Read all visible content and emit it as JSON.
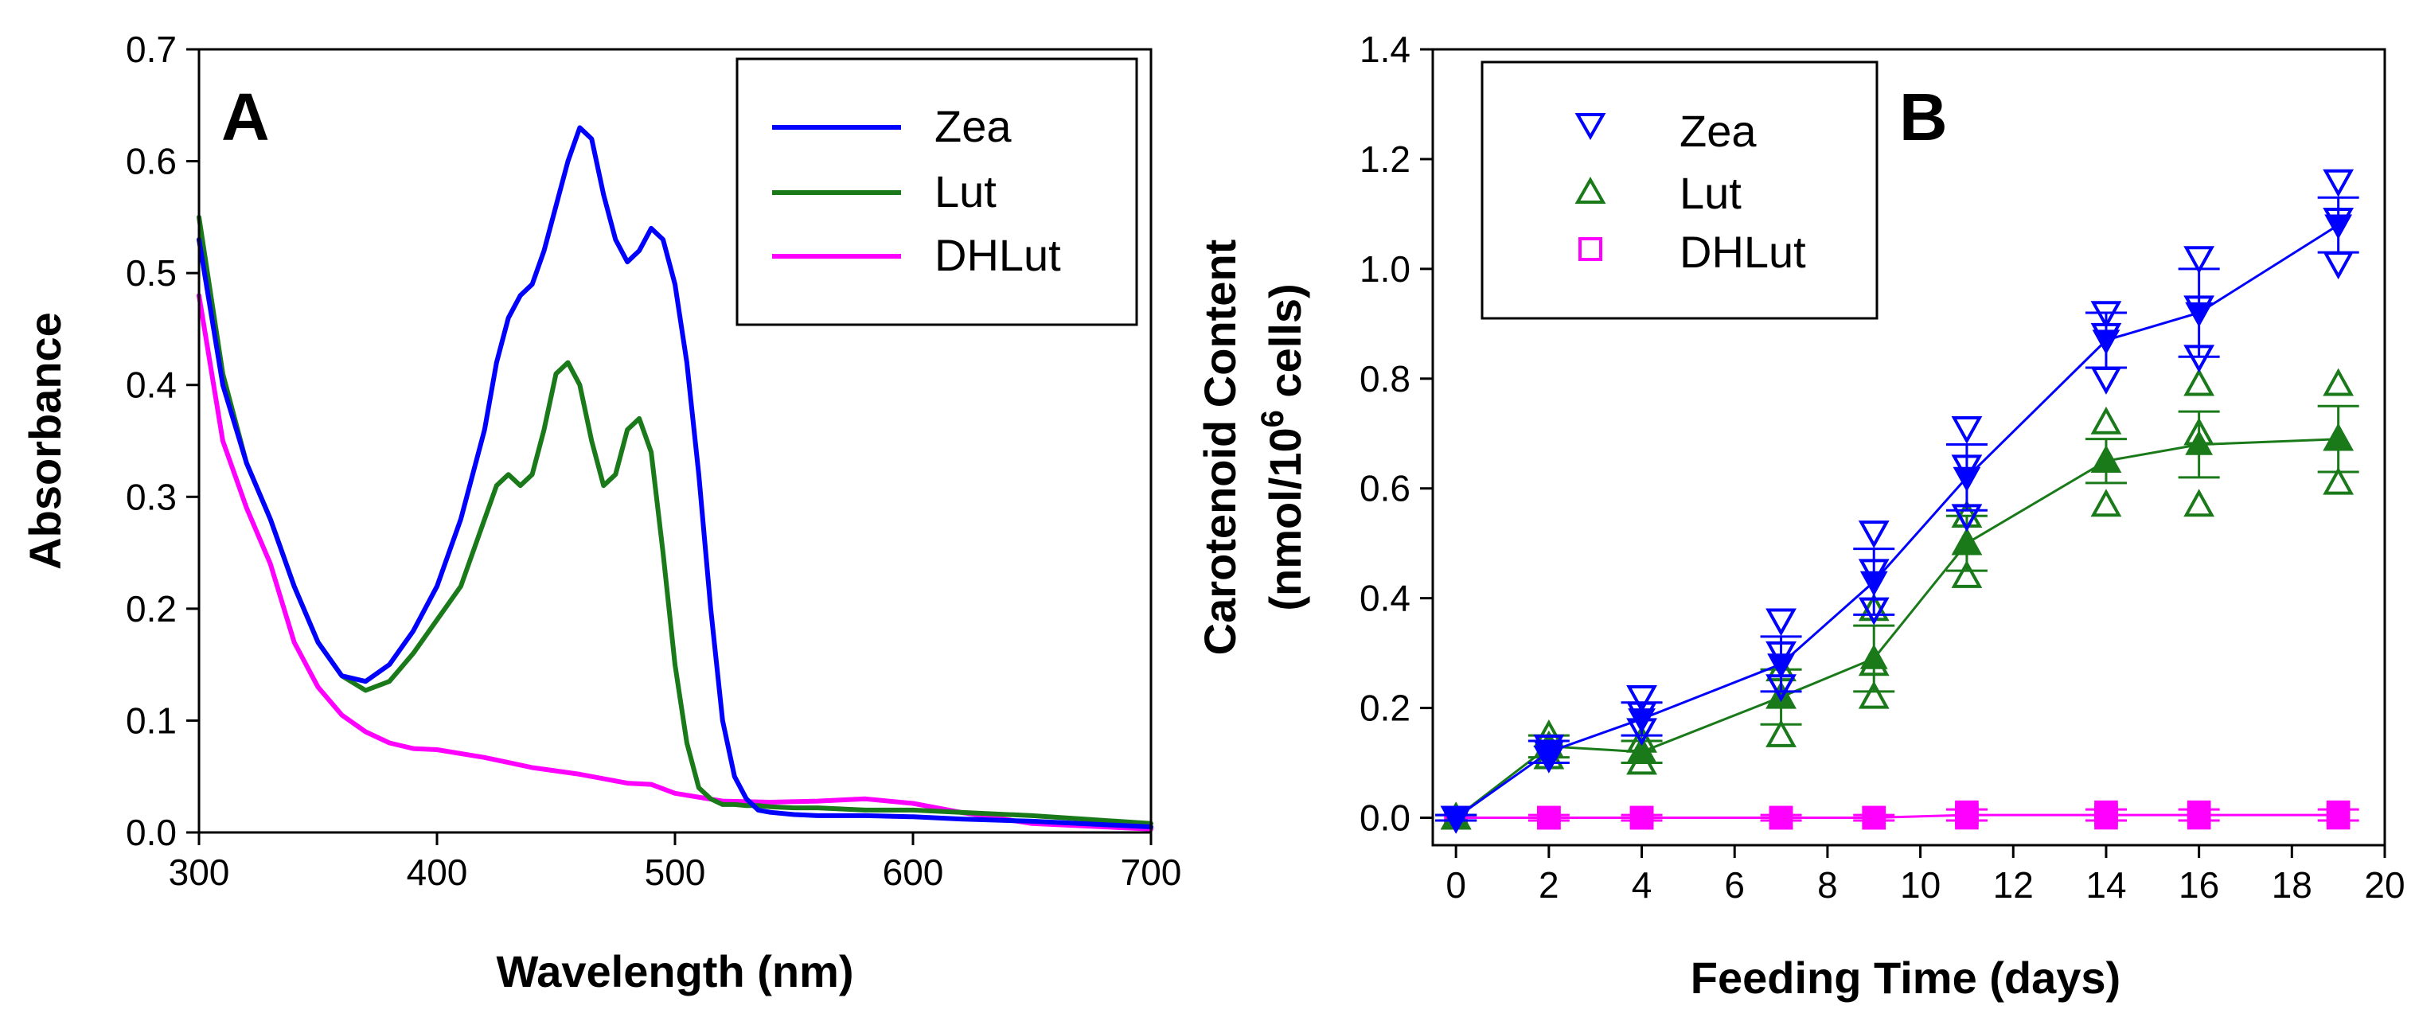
{
  "chart_data": [
    {
      "type": "line",
      "panel_label": "A",
      "xlabel": "Wavelength (nm)",
      "ylabel": "Absorbance",
      "xlim": [
        300,
        700
      ],
      "ylim": [
        0,
        0.7
      ],
      "xticks": [
        300,
        400,
        500,
        600,
        700
      ],
      "yticks": [
        0.0,
        0.1,
        0.2,
        0.3,
        0.4,
        0.5,
        0.6,
        0.7
      ],
      "xtick_labels": [
        "300",
        "400",
        "500",
        "600",
        "700"
      ],
      "ytick_labels": [
        "0.0",
        "0.1",
        "0.2",
        "0.3",
        "0.4",
        "0.5",
        "0.6",
        "0.7"
      ],
      "legend_position": "top-right",
      "series": [
        {
          "name": "Zea",
          "color": "#0000ff",
          "x": [
            300,
            310,
            320,
            330,
            340,
            350,
            360,
            370,
            380,
            390,
            400,
            410,
            420,
            425,
            430,
            435,
            440,
            445,
            450,
            455,
            460,
            465,
            470,
            475,
            480,
            485,
            490,
            495,
            500,
            505,
            510,
            515,
            520,
            525,
            530,
            535,
            540,
            550,
            560,
            580,
            600,
            620,
            650,
            700
          ],
          "y": [
            0.53,
            0.4,
            0.33,
            0.28,
            0.22,
            0.17,
            0.14,
            0.135,
            0.15,
            0.18,
            0.22,
            0.28,
            0.36,
            0.42,
            0.46,
            0.48,
            0.49,
            0.52,
            0.56,
            0.6,
            0.63,
            0.62,
            0.57,
            0.53,
            0.51,
            0.52,
            0.54,
            0.53,
            0.49,
            0.42,
            0.32,
            0.2,
            0.1,
            0.05,
            0.03,
            0.02,
            0.018,
            0.016,
            0.015,
            0.015,
            0.014,
            0.012,
            0.01,
            0.005
          ]
        },
        {
          "name": "Lut",
          "color": "#1a7a1a",
          "x": [
            300,
            310,
            320,
            330,
            340,
            350,
            360,
            370,
            380,
            390,
            400,
            410,
            420,
            425,
            430,
            435,
            440,
            445,
            450,
            455,
            460,
            465,
            470,
            475,
            480,
            485,
            490,
            495,
            500,
            505,
            510,
            515,
            520,
            525,
            530,
            535,
            540,
            550,
            560,
            580,
            600,
            620,
            650,
            700
          ],
          "y": [
            0.55,
            0.41,
            0.33,
            0.28,
            0.22,
            0.17,
            0.14,
            0.127,
            0.135,
            0.16,
            0.19,
            0.22,
            0.28,
            0.31,
            0.32,
            0.31,
            0.32,
            0.36,
            0.41,
            0.42,
            0.4,
            0.35,
            0.31,
            0.32,
            0.36,
            0.37,
            0.34,
            0.25,
            0.15,
            0.08,
            0.04,
            0.03,
            0.025,
            0.025,
            0.024,
            0.024,
            0.023,
            0.022,
            0.022,
            0.02,
            0.02,
            0.018,
            0.015,
            0.008
          ]
        },
        {
          "name": "DHLut",
          "color": "#ff00ff",
          "x": [
            300,
            310,
            320,
            330,
            340,
            350,
            360,
            370,
            380,
            390,
            400,
            420,
            440,
            460,
            480,
            490,
            500,
            520,
            540,
            560,
            580,
            600,
            620,
            650,
            700
          ],
          "y": [
            0.48,
            0.35,
            0.29,
            0.24,
            0.17,
            0.13,
            0.105,
            0.09,
            0.08,
            0.075,
            0.074,
            0.067,
            0.058,
            0.052,
            0.044,
            0.043,
            0.035,
            0.028,
            0.027,
            0.028,
            0.03,
            0.026,
            0.018,
            0.008,
            0.003
          ]
        }
      ]
    },
    {
      "type": "scatter",
      "panel_label": "B",
      "xlabel": "Feeding Time (days)",
      "ylabel_line1": "Carotenoid Content",
      "ylabel_line2_prefix": "(nmol/10",
      "ylabel_line2_sup": "6",
      "ylabel_line2_suffix": " cells)",
      "xlim": [
        -0.5,
        20
      ],
      "ylim": [
        -0.05,
        1.4
      ],
      "xticks": [
        0,
        2,
        4,
        6,
        8,
        10,
        12,
        14,
        16,
        18,
        20
      ],
      "yticks": [
        0.0,
        0.2,
        0.4,
        0.6,
        0.8,
        1.0,
        1.2,
        1.4
      ],
      "xtick_labels": [
        "0",
        "2",
        "4",
        "6",
        "8",
        "10",
        "12",
        "14",
        "16",
        "18",
        "20"
      ],
      "ytick_labels": [
        "0.0",
        "0.2",
        "0.4",
        "0.6",
        "0.8",
        "1.0",
        "1.2",
        "1.4"
      ],
      "legend_position": "top-left",
      "days": [
        0,
        2,
        4,
        7,
        9,
        11,
        14,
        16,
        19
      ],
      "series": [
        {
          "name": "Zea",
          "color": "#0000ff",
          "marker": "triangle-down",
          "mean": [
            0.0,
            0.12,
            0.18,
            0.28,
            0.43,
            0.62,
            0.87,
            0.92,
            1.08
          ],
          "err": [
            0.005,
            0.02,
            0.03,
            0.05,
            0.06,
            0.06,
            0.05,
            0.08,
            0.05
          ],
          "replicates": [
            [
              0.0,
              0.0,
              0.0
            ],
            [
              0.11,
              0.12,
              0.13
            ],
            [
              0.16,
              0.19,
              0.22
            ],
            [
              0.24,
              0.3,
              0.36
            ],
            [
              0.38,
              0.45,
              0.52
            ],
            [
              0.55,
              0.64,
              0.71
            ],
            [
              0.8,
              0.88,
              0.92
            ],
            [
              0.84,
              0.93,
              1.02
            ],
            [
              1.01,
              1.09,
              1.16
            ]
          ]
        },
        {
          "name": "Lut",
          "color": "#1a7a1a",
          "marker": "triangle-up",
          "mean": [
            0.0,
            0.13,
            0.12,
            0.22,
            0.29,
            0.5,
            0.65,
            0.68,
            0.69
          ],
          "err": [
            0.005,
            0.02,
            0.02,
            0.05,
            0.06,
            0.05,
            0.04,
            0.06,
            0.06
          ],
          "replicates": [
            [
              0.0,
              0.0,
              0.0
            ],
            [
              0.11,
              0.13,
              0.15
            ],
            [
              0.1,
              0.12,
              0.14
            ],
            [
              0.15,
              0.22,
              0.27
            ],
            [
              0.22,
              0.28,
              0.38
            ],
            [
              0.44,
              0.5,
              0.55
            ],
            [
              0.57,
              0.65,
              0.72
            ],
            [
              0.57,
              0.7,
              0.79
            ],
            [
              0.61,
              0.69,
              0.79
            ]
          ]
        },
        {
          "name": "DHLut",
          "color": "#ff00ff",
          "marker": "square",
          "mean": [
            0.0,
            0.0,
            0.0,
            0.0,
            0.0,
            0.005,
            0.005,
            0.005,
            0.005
          ],
          "err": [
            0.005,
            0.005,
            0.005,
            0.005,
            0.005,
            0.01,
            0.01,
            0.01,
            0.01
          ],
          "replicates": [
            [
              0.0,
              0.0,
              0.0
            ],
            [
              0.0,
              0.0,
              0.0
            ],
            [
              0.0,
              0.0,
              0.0
            ],
            [
              0.0,
              0.0,
              0.0
            ],
            [
              0.0,
              0.0,
              0.0
            ],
            [
              0.0,
              0.005,
              0.01
            ],
            [
              0.0,
              0.005,
              0.01
            ],
            [
              0.0,
              0.005,
              0.01
            ],
            [
              0.0,
              0.005,
              0.01
            ]
          ]
        }
      ]
    }
  ]
}
